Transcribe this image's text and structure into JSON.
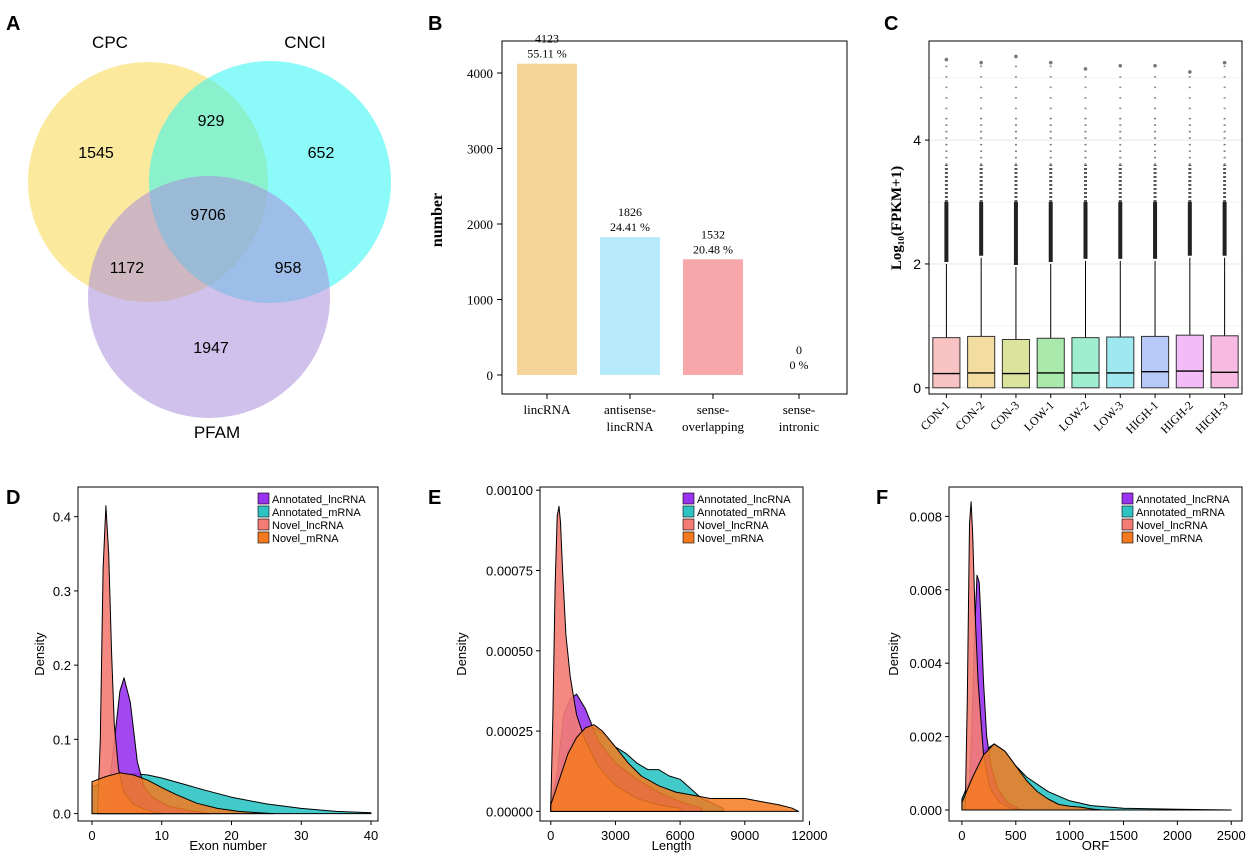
{
  "panel_labels": [
    "A",
    "B",
    "C",
    "D",
    "E",
    "F"
  ],
  "chart_data": [
    {
      "panel": "A",
      "type": "venn",
      "sets": [
        "CPC",
        "CNCI",
        "PFAM"
      ],
      "colors": [
        "#f8d84f",
        "#2ef5f2",
        "#a98ddc"
      ],
      "regions": {
        "cpc_only": "1545",
        "cnci_only": "652",
        "pfam_only": "1947",
        "cpc_cnci": "929",
        "cpc_pfam": "1172",
        "cnci_pfam": "958",
        "all": "9706"
      }
    },
    {
      "panel": "B",
      "type": "bar",
      "ylabel": "number",
      "ylim": [
        0,
        4500
      ],
      "yticks": [
        "0",
        "1000",
        "2000",
        "3000",
        "4000"
      ],
      "categories": [
        [
          "lincRNA"
        ],
        [
          "antisense-",
          "lincRNA"
        ],
        [
          "sense-",
          "overlapping"
        ],
        [
          "sense-",
          "intronic"
        ]
      ],
      "values": [
        4123,
        1826,
        1532,
        0
      ],
      "count_labels": [
        "4123",
        "1826",
        "1532",
        "0"
      ],
      "percent_labels": [
        "55.11 %",
        "24.41 %",
        "20.48 %",
        "0 %"
      ],
      "colors": [
        "#f5d49a",
        "#b6e9f9",
        "#f7a7a9",
        "#cccccc"
      ]
    },
    {
      "panel": "C",
      "type": "boxplot",
      "ylabel": "Log₁₀(FPKM+1)",
      "ylim": [
        -0.1,
        5.6
      ],
      "yticks": [
        "0",
        "2",
        "4"
      ],
      "categories": [
        "CON-1",
        "CON-2",
        "CON-3",
        "LOW-1",
        "LOW-2",
        "LOW-3",
        "HIGH-1",
        "HIGH-2",
        "HIGH-3"
      ],
      "colors": [
        "#f9c3c3",
        "#f2dca0",
        "#dbe39d",
        "#a9e9ab",
        "#9feecf",
        "#9fe8ef",
        "#b6c9f9",
        "#f2bcf7",
        "#f8b9e2"
      ],
      "q1": [
        0.0,
        0.0,
        0.0,
        0.0,
        0.0,
        0.0,
        0.0,
        0.0,
        0.0
      ],
      "median": [
        0.23,
        0.24,
        0.23,
        0.24,
        0.24,
        0.24,
        0.26,
        0.27,
        0.25
      ],
      "q3": [
        0.81,
        0.83,
        0.78,
        0.8,
        0.81,
        0.82,
        0.83,
        0.85,
        0.84
      ],
      "whisker_high": [
        2.0,
        2.1,
        1.95,
        2.0,
        2.05,
        2.05,
        2.05,
        2.1,
        2.1
      ],
      "max_outlier": [
        5.3,
        5.25,
        5.35,
        5.25,
        5.15,
        5.2,
        5.2,
        5.1,
        5.25
      ]
    },
    {
      "panel": "D",
      "type": "area",
      "xlabel": "Exon number",
      "ylabel": "Density",
      "xlim": [
        -2,
        41
      ],
      "ylim": [
        -0.01,
        0.44
      ],
      "xticks": [
        "0",
        "10",
        "20",
        "30",
        "40"
      ],
      "yticks": [
        "0.0",
        "0.1",
        "0.2",
        "0.3",
        "0.4"
      ],
      "legend": [
        "Annotated_lncRNA",
        "Annotated_mRNA",
        "Novel_lncRNA",
        "Novel_mRNA"
      ],
      "series": [
        {
          "name": "Annotated_lncRNA",
          "color": "#9933ee",
          "x": [
            1,
            2,
            3,
            4,
            4.6,
            5.5,
            6.5,
            7.5,
            9,
            11,
            14,
            17
          ],
          "y": [
            0,
            0.01,
            0.08,
            0.165,
            0.183,
            0.15,
            0.07,
            0.035,
            0.02,
            0.01,
            0.004,
            0
          ]
        },
        {
          "name": "Annotated_mRNA",
          "color": "#2ec4c4",
          "x": [
            0,
            2,
            4,
            6,
            8,
            10,
            13,
            16,
            20,
            25,
            30,
            35,
            40
          ],
          "y": [
            0.035,
            0.045,
            0.05,
            0.054,
            0.052,
            0.048,
            0.04,
            0.032,
            0.022,
            0.013,
            0.007,
            0.003,
            0.001
          ]
        },
        {
          "name": "Novel_lncRNA",
          "color": "#f37c74",
          "x": [
            0.8,
            1.2,
            1.6,
            2.0,
            2.4,
            2.8,
            3.2,
            3.8,
            4.5,
            6,
            8,
            10
          ],
          "y": [
            0,
            0.1,
            0.33,
            0.415,
            0.35,
            0.22,
            0.12,
            0.06,
            0.03,
            0.012,
            0.004,
            0
          ]
        },
        {
          "name": "Novel_mRNA",
          "color": "#f47a20",
          "x": [
            0,
            2,
            4,
            6,
            8,
            10,
            12,
            15,
            18,
            21,
            24,
            26
          ],
          "y": [
            0.043,
            0.05,
            0.055,
            0.052,
            0.045,
            0.035,
            0.026,
            0.014,
            0.007,
            0.003,
            0.001,
            0
          ]
        }
      ]
    },
    {
      "panel": "E",
      "type": "area",
      "xlabel": "Length",
      "ylabel": "Density",
      "xlim": [
        -500,
        11700
      ],
      "ylim": [
        -3e-05,
        0.00101
      ],
      "xticks": [
        "0",
        "3000",
        "6000",
        "9000",
        "12000"
      ],
      "yticks": [
        "0.00000",
        "0.00025",
        "0.00050",
        "0.00075",
        "0.00100"
      ],
      "legend": [
        "Annotated_lncRNA",
        "Annotated_mRNA",
        "Novel_lncRNA",
        "Novel_mRNA"
      ],
      "series": [
        {
          "name": "Annotated_lncRNA",
          "color": "#9933ee",
          "x": [
            0,
            300,
            600,
            900,
            1200,
            1600,
            2200,
            3000,
            4000,
            5000,
            6000,
            7000
          ],
          "y": [
            2e-05,
            0.00012,
            0.0003,
            0.00035,
            0.000365,
            0.00032,
            0.00022,
            0.00015,
            0.0001,
            6e-05,
            3e-05,
            1e-05
          ]
        },
        {
          "name": "Annotated_mRNA",
          "color": "#2ec4c4",
          "x": [
            0,
            500,
            1000,
            1500,
            2000,
            2500,
            3000,
            3500,
            4000,
            4500,
            5000,
            5500,
            6000,
            6500,
            7000,
            8000
          ],
          "y": [
            3e-05,
            0.00015,
            0.00022,
            0.00025,
            0.00026,
            0.00024,
            0.0002,
            0.00018,
            0.00015,
            0.00013,
            0.00013,
            0.00011,
            0.0001,
            7e-05,
            4e-05,
            1e-05
          ]
        },
        {
          "name": "Novel_lncRNA",
          "color": "#f37c74",
          "x": [
            0,
            100,
            200,
            300,
            380,
            450,
            550,
            700,
            900,
            1200,
            1600,
            2200,
            3000,
            4000,
            5000,
            6000
          ],
          "y": [
            2e-05,
            0.0003,
            0.0007,
            0.00092,
            0.00095,
            0.0009,
            0.00075,
            0.00055,
            0.00042,
            0.0003,
            0.00022,
            0.00014,
            8e-05,
            4e-05,
            2e-05,
            1e-05
          ]
        },
        {
          "name": "Novel_mRNA",
          "color": "#f47a20",
          "x": [
            0,
            400,
            800,
            1200,
            1600,
            2000,
            2400,
            3000,
            3600,
            4200,
            5000,
            5800,
            6600,
            7400,
            8200,
            9000,
            9800,
            10600,
            11200,
            11500
          ],
          "y": [
            2e-05,
            0.0001,
            0.00018,
            0.00023,
            0.00026,
            0.00027,
            0.00025,
            0.0002,
            0.00015,
            0.00011,
            8e-05,
            6e-05,
            5e-05,
            4e-05,
            4e-05,
            4e-05,
            3e-05,
            2e-05,
            1e-05,
            0
          ]
        }
      ]
    },
    {
      "panel": "F",
      "type": "area",
      "xlabel": "ORF",
      "ylabel": "Density",
      "xlim": [
        -120,
        2600
      ],
      "ylim": [
        -0.0003,
        0.0088
      ],
      "xticks": [
        "0",
        "500",
        "1000",
        "1500",
        "2000",
        "2500"
      ],
      "yticks": [
        "0.000",
        "0.002",
        "0.004",
        "0.006",
        "0.008"
      ],
      "legend": [
        "Annotated_lncRNA",
        "Annotated_mRNA",
        "Novel_lncRNA",
        "Novel_mRNA"
      ],
      "series": [
        {
          "name": "Annotated_lncRNA",
          "color": "#9933ee",
          "x": [
            60,
            90,
            120,
            140,
            160,
            180,
            200,
            230,
            270,
            330,
            420,
            550
          ],
          "y": [
            0,
            0.002,
            0.005,
            0.0064,
            0.0062,
            0.005,
            0.0035,
            0.002,
            0.0012,
            0.0006,
            0.0002,
            0
          ]
        },
        {
          "name": "Annotated_mRNA",
          "color": "#2ec4c4",
          "x": [
            0,
            100,
            200,
            300,
            400,
            500,
            600,
            800,
            1000,
            1200,
            1500,
            2000,
            2500
          ],
          "y": [
            0.0003,
            0.001,
            0.0016,
            0.0018,
            0.0016,
            0.0012,
            0.0009,
            0.0005,
            0.00025,
            0.00012,
            5e-05,
            2e-05,
            0
          ]
        },
        {
          "name": "Novel_lncRNA",
          "color": "#f37c74",
          "x": [
            30,
            50,
            70,
            85,
            100,
            120,
            150,
            200,
            260,
            350,
            450,
            600
          ],
          "y": [
            0,
            0.003,
            0.0078,
            0.0084,
            0.0075,
            0.0055,
            0.0035,
            0.0015,
            0.0006,
            0.0002,
            5e-05,
            0
          ]
        },
        {
          "name": "Novel_mRNA",
          "color": "#f47a20",
          "x": [
            0,
            100,
            200,
            300,
            400,
            500,
            600,
            700,
            800,
            900,
            1000,
            1100,
            1200,
            1300
          ],
          "y": [
            0.0002,
            0.0009,
            0.0015,
            0.0018,
            0.0016,
            0.0012,
            0.0008,
            0.0005,
            0.0003,
            0.00015,
            0.0001,
            8e-05,
            3e-05,
            0
          ]
        }
      ]
    }
  ]
}
